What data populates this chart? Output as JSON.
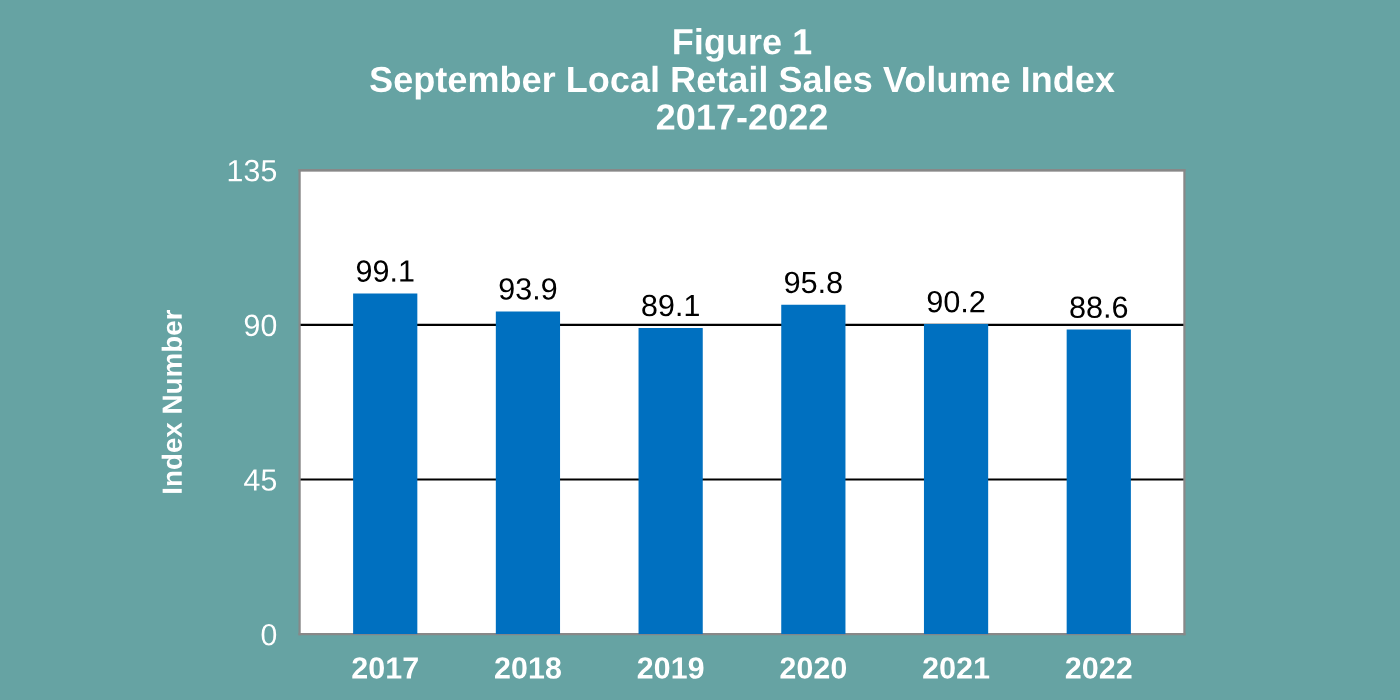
{
  "chart_data": {
    "type": "bar",
    "title": "Figure 1\nSeptember Local Retail Sales Volume Index\n2017-2022",
    "ylabel": "Index Number",
    "categories": [
      "2017",
      "2018",
      "2019",
      "2020",
      "2021",
      "2022"
    ],
    "values": [
      99.1,
      93.9,
      89.1,
      95.8,
      90.2,
      88.6
    ],
    "color": "#0070c0",
    "ylim": [
      0,
      135
    ],
    "yticks": [
      0,
      45,
      90,
      135
    ],
    "grid": "y",
    "data_labels": true
  }
}
